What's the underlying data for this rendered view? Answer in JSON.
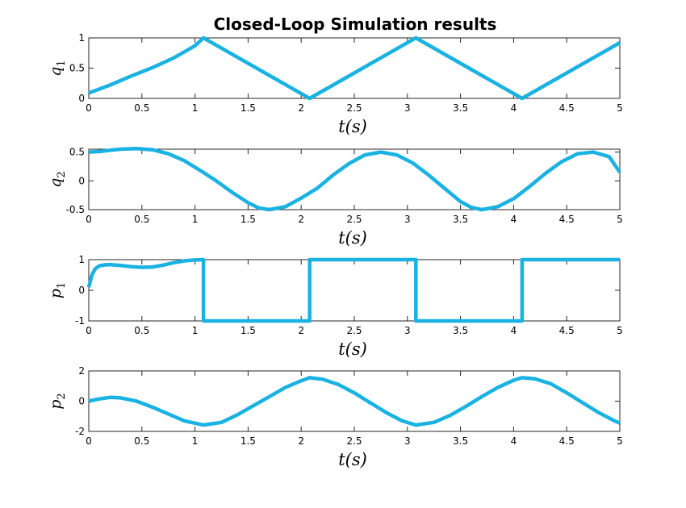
{
  "colors": {
    "series": "#19b2e2",
    "axes": "#262626"
  },
  "chart_data": {
    "title": "Closed-Loop Simulation results",
    "type": "line",
    "subplots": [
      {
        "ylabel": "q",
        "ylabel_sub": "1",
        "xlabel": "t(s)",
        "xlim": [
          0,
          5
        ],
        "ylim": [
          0,
          1
        ],
        "xticks": [
          0,
          0.5,
          1,
          1.5,
          2,
          2.5,
          3,
          3.5,
          4,
          4.5,
          5
        ],
        "xtick_labels": [
          "0",
          "0.5",
          "1",
          "1.5",
          "2",
          "2.5",
          "3",
          "3.5",
          "4",
          "4.5",
          "5"
        ],
        "yticks": [
          0,
          0.5,
          1
        ],
        "ytick_labels": [
          "0",
          "0.5",
          "1"
        ],
        "series": [
          {
            "x": [
              0,
              0.2,
              0.4,
              0.6,
              0.8,
              1.0,
              1.08,
              1.58,
              2.08,
              2.58,
              3.08,
              3.58,
              4.08,
              4.58,
              5.0
            ],
            "y": [
              0.09,
              0.22,
              0.37,
              0.51,
              0.67,
              0.87,
              1.0,
              0.5,
              0.0,
              0.5,
              1.0,
              0.5,
              0.0,
              0.5,
              0.92
            ]
          }
        ]
      },
      {
        "ylabel": "q",
        "ylabel_sub": "2",
        "xlabel": "t(s)",
        "xlim": [
          0,
          5
        ],
        "ylim": [
          -0.5,
          0.55
        ],
        "xticks": [
          0,
          0.5,
          1,
          1.5,
          2,
          2.5,
          3,
          3.5,
          4,
          4.5,
          5
        ],
        "xtick_labels": [
          "0",
          "0.5",
          "1",
          "1.5",
          "2",
          "2.5",
          "3",
          "3.5",
          "4",
          "4.5",
          "5"
        ],
        "yticks": [
          -0.5,
          0,
          0.5
        ],
        "ytick_labels": [
          "-0.5",
          "0",
          "0.5"
        ],
        "series": [
          {
            "x": [
              0,
              0.1,
              0.2,
              0.3,
              0.45,
              0.6,
              0.75,
              0.9,
              1.05,
              1.2,
              1.35,
              1.5,
              1.6,
              1.7,
              1.85,
              2.0,
              2.15,
              2.3,
              2.45,
              2.6,
              2.75,
              2.9,
              3.05,
              3.2,
              3.35,
              3.5,
              3.6,
              3.7,
              3.85,
              4.0,
              4.15,
              4.3,
              4.45,
              4.6,
              4.75,
              4.9,
              5.0
            ],
            "y": [
              0.5,
              0.51,
              0.53,
              0.55,
              0.56,
              0.54,
              0.47,
              0.35,
              0.18,
              0.0,
              -0.2,
              -0.38,
              -0.47,
              -0.5,
              -0.45,
              -0.3,
              -0.13,
              0.1,
              0.3,
              0.45,
              0.5,
              0.45,
              0.31,
              0.1,
              -0.13,
              -0.36,
              -0.46,
              -0.5,
              -0.45,
              -0.31,
              -0.1,
              0.13,
              0.33,
              0.47,
              0.5,
              0.42,
              0.15
            ]
          }
        ]
      },
      {
        "ylabel": "p",
        "ylabel_sub": "1",
        "xlabel": "t(s)",
        "xlim": [
          0,
          5
        ],
        "ylim": [
          -1,
          1
        ],
        "xticks": [
          0,
          0.5,
          1,
          1.5,
          2,
          2.5,
          3,
          3.5,
          4,
          4.5,
          5
        ],
        "xtick_labels": [
          "0",
          "0.5",
          "1",
          "1.5",
          "2",
          "2.5",
          "3",
          "3.5",
          "4",
          "4.5",
          "5"
        ],
        "yticks": [
          -1,
          0,
          1
        ],
        "ytick_labels": [
          "-1",
          "0",
          "1"
        ],
        "series": [
          {
            "x": [
              0,
              0.03,
              0.06,
              0.1,
              0.15,
              0.2,
              0.3,
              0.4,
              0.5,
              0.6,
              0.7,
              0.8,
              0.9,
              1.0,
              1.08,
              1.08,
              2.08,
              2.08,
              3.08,
              3.08,
              4.08,
              4.08,
              5.0
            ],
            "y": [
              0.1,
              0.5,
              0.7,
              0.8,
              0.83,
              0.84,
              0.81,
              0.77,
              0.75,
              0.76,
              0.82,
              0.9,
              0.96,
              0.99,
              1.0,
              -1.0,
              -1.0,
              1.0,
              1.0,
              -1.0,
              -1.0,
              1.0,
              1.0
            ]
          }
        ]
      },
      {
        "ylabel": "p",
        "ylabel_sub": "2",
        "xlabel": "t(s)",
        "xlim": [
          0,
          5
        ],
        "ylim": [
          -2,
          2
        ],
        "xticks": [
          0,
          0.5,
          1,
          1.5,
          2,
          2.5,
          3,
          3.5,
          4,
          4.5,
          5
        ],
        "xtick_labels": [
          "0",
          "0.5",
          "1",
          "1.5",
          "2",
          "2.5",
          "3",
          "3.5",
          "4",
          "4.5",
          "5"
        ],
        "yticks": [
          -2,
          0,
          2
        ],
        "ytick_labels": [
          "-2",
          "0",
          "2"
        ],
        "series": [
          {
            "x": [
              0,
              0.1,
              0.2,
              0.3,
              0.45,
              0.6,
              0.75,
              0.9,
              1.08,
              1.25,
              1.4,
              1.55,
              1.7,
              1.85,
              2.0,
              2.08,
              2.2,
              2.35,
              2.5,
              2.65,
              2.8,
              2.95,
              3.08,
              3.25,
              3.4,
              3.55,
              3.7,
              3.85,
              4.0,
              4.08,
              4.2,
              4.35,
              4.5,
              4.65,
              4.8,
              4.95,
              5.0
            ],
            "y": [
              0.0,
              0.15,
              0.25,
              0.22,
              0.0,
              -0.4,
              -0.85,
              -1.3,
              -1.58,
              -1.4,
              -0.9,
              -0.3,
              0.3,
              0.9,
              1.35,
              1.55,
              1.45,
              1.1,
              0.55,
              -0.1,
              -0.75,
              -1.3,
              -1.58,
              -1.4,
              -0.95,
              -0.35,
              0.3,
              0.9,
              1.38,
              1.55,
              1.48,
              1.15,
              0.55,
              -0.1,
              -0.75,
              -1.3,
              -1.45
            ]
          }
        ]
      }
    ]
  }
}
